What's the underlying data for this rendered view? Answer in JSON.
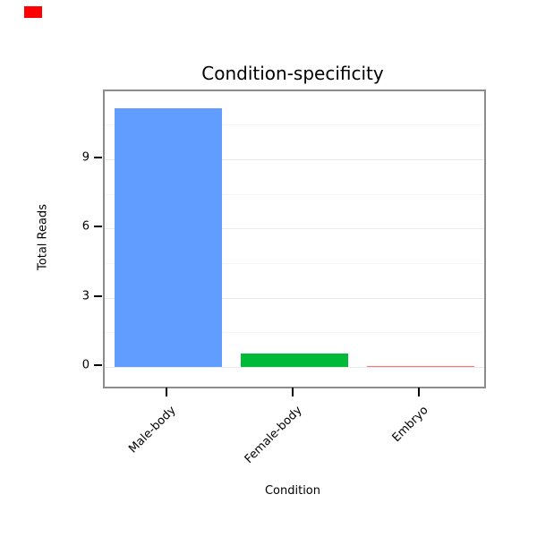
{
  "marker": {
    "color": "#ff0000"
  },
  "chart_data": {
    "type": "bar",
    "title": "Condition-specificity",
    "xlabel": "Condition",
    "ylabel": "Total Reads",
    "categories": [
      "Male-body",
      "Female-body",
      "Embryo"
    ],
    "values": [
      11.2,
      0.6,
      0.05
    ],
    "colors": [
      "#619CFF",
      "#00BA38",
      "#F8766D"
    ],
    "yticks": [
      0,
      3,
      6,
      9
    ],
    "ylim": [
      -0.85,
      11.95
    ],
    "grid": true,
    "gridline_major_color": "#ebebeb",
    "gridline_minor_color": "#f5f5f5",
    "frame_color": "#8c8c8c",
    "legend": "none"
  }
}
